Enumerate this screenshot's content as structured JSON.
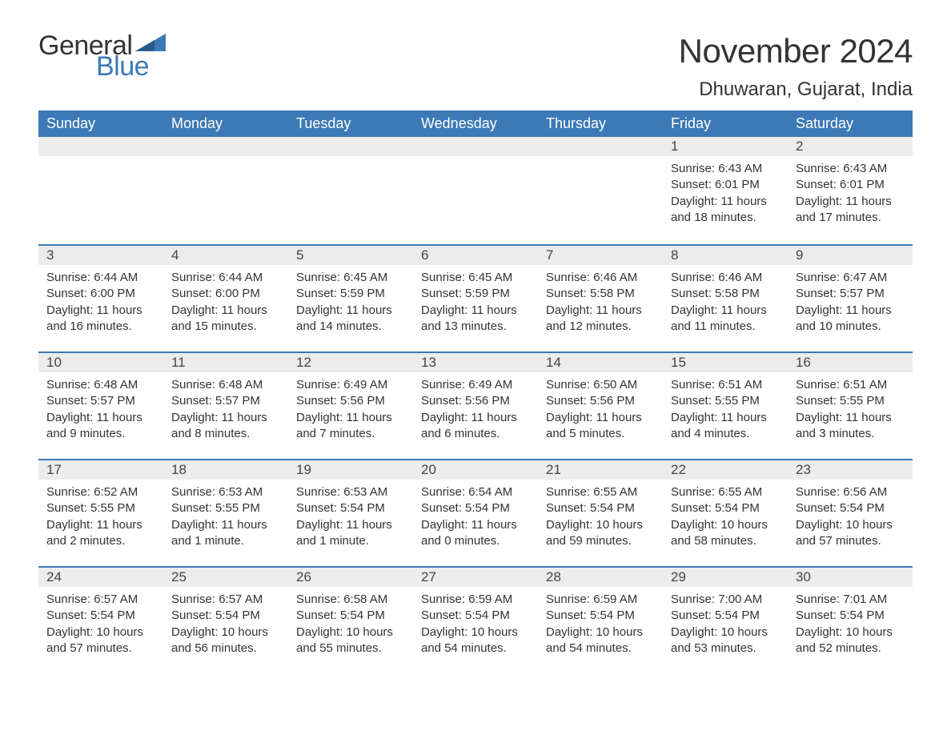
{
  "logo": {
    "text1": "General",
    "text2": "Blue",
    "accent_color": "#3c79b6"
  },
  "title": "November 2024",
  "location": "Dhuwaran, Gujarat, India",
  "header_bg": "#3c79b6",
  "header_fg": "#ffffff",
  "strip_bg": "#ececec",
  "border_color": "#3c79b6",
  "text_color": "#333333",
  "weekdays": [
    "Sunday",
    "Monday",
    "Tuesday",
    "Wednesday",
    "Thursday",
    "Friday",
    "Saturday"
  ],
  "weeks": [
    [
      {
        "n": "",
        "sr": "",
        "ss": "",
        "dl": ""
      },
      {
        "n": "",
        "sr": "",
        "ss": "",
        "dl": ""
      },
      {
        "n": "",
        "sr": "",
        "ss": "",
        "dl": ""
      },
      {
        "n": "",
        "sr": "",
        "ss": "",
        "dl": ""
      },
      {
        "n": "",
        "sr": "",
        "ss": "",
        "dl": ""
      },
      {
        "n": "1",
        "sr": "Sunrise: 6:43 AM",
        "ss": "Sunset: 6:01 PM",
        "dl": "Daylight: 11 hours and 18 minutes."
      },
      {
        "n": "2",
        "sr": "Sunrise: 6:43 AM",
        "ss": "Sunset: 6:01 PM",
        "dl": "Daylight: 11 hours and 17 minutes."
      }
    ],
    [
      {
        "n": "3",
        "sr": "Sunrise: 6:44 AM",
        "ss": "Sunset: 6:00 PM",
        "dl": "Daylight: 11 hours and 16 minutes."
      },
      {
        "n": "4",
        "sr": "Sunrise: 6:44 AM",
        "ss": "Sunset: 6:00 PM",
        "dl": "Daylight: 11 hours and 15 minutes."
      },
      {
        "n": "5",
        "sr": "Sunrise: 6:45 AM",
        "ss": "Sunset: 5:59 PM",
        "dl": "Daylight: 11 hours and 14 minutes."
      },
      {
        "n": "6",
        "sr": "Sunrise: 6:45 AM",
        "ss": "Sunset: 5:59 PM",
        "dl": "Daylight: 11 hours and 13 minutes."
      },
      {
        "n": "7",
        "sr": "Sunrise: 6:46 AM",
        "ss": "Sunset: 5:58 PM",
        "dl": "Daylight: 11 hours and 12 minutes."
      },
      {
        "n": "8",
        "sr": "Sunrise: 6:46 AM",
        "ss": "Sunset: 5:58 PM",
        "dl": "Daylight: 11 hours and 11 minutes."
      },
      {
        "n": "9",
        "sr": "Sunrise: 6:47 AM",
        "ss": "Sunset: 5:57 PM",
        "dl": "Daylight: 11 hours and 10 minutes."
      }
    ],
    [
      {
        "n": "10",
        "sr": "Sunrise: 6:48 AM",
        "ss": "Sunset: 5:57 PM",
        "dl": "Daylight: 11 hours and 9 minutes."
      },
      {
        "n": "11",
        "sr": "Sunrise: 6:48 AM",
        "ss": "Sunset: 5:57 PM",
        "dl": "Daylight: 11 hours and 8 minutes."
      },
      {
        "n": "12",
        "sr": "Sunrise: 6:49 AM",
        "ss": "Sunset: 5:56 PM",
        "dl": "Daylight: 11 hours and 7 minutes."
      },
      {
        "n": "13",
        "sr": "Sunrise: 6:49 AM",
        "ss": "Sunset: 5:56 PM",
        "dl": "Daylight: 11 hours and 6 minutes."
      },
      {
        "n": "14",
        "sr": "Sunrise: 6:50 AM",
        "ss": "Sunset: 5:56 PM",
        "dl": "Daylight: 11 hours and 5 minutes."
      },
      {
        "n": "15",
        "sr": "Sunrise: 6:51 AM",
        "ss": "Sunset: 5:55 PM",
        "dl": "Daylight: 11 hours and 4 minutes."
      },
      {
        "n": "16",
        "sr": "Sunrise: 6:51 AM",
        "ss": "Sunset: 5:55 PM",
        "dl": "Daylight: 11 hours and 3 minutes."
      }
    ],
    [
      {
        "n": "17",
        "sr": "Sunrise: 6:52 AM",
        "ss": "Sunset: 5:55 PM",
        "dl": "Daylight: 11 hours and 2 minutes."
      },
      {
        "n": "18",
        "sr": "Sunrise: 6:53 AM",
        "ss": "Sunset: 5:55 PM",
        "dl": "Daylight: 11 hours and 1 minute."
      },
      {
        "n": "19",
        "sr": "Sunrise: 6:53 AM",
        "ss": "Sunset: 5:54 PM",
        "dl": "Daylight: 11 hours and 1 minute."
      },
      {
        "n": "20",
        "sr": "Sunrise: 6:54 AM",
        "ss": "Sunset: 5:54 PM",
        "dl": "Daylight: 11 hours and 0 minutes."
      },
      {
        "n": "21",
        "sr": "Sunrise: 6:55 AM",
        "ss": "Sunset: 5:54 PM",
        "dl": "Daylight: 10 hours and 59 minutes."
      },
      {
        "n": "22",
        "sr": "Sunrise: 6:55 AM",
        "ss": "Sunset: 5:54 PM",
        "dl": "Daylight: 10 hours and 58 minutes."
      },
      {
        "n": "23",
        "sr": "Sunrise: 6:56 AM",
        "ss": "Sunset: 5:54 PM",
        "dl": "Daylight: 10 hours and 57 minutes."
      }
    ],
    [
      {
        "n": "24",
        "sr": "Sunrise: 6:57 AM",
        "ss": "Sunset: 5:54 PM",
        "dl": "Daylight: 10 hours and 57 minutes."
      },
      {
        "n": "25",
        "sr": "Sunrise: 6:57 AM",
        "ss": "Sunset: 5:54 PM",
        "dl": "Daylight: 10 hours and 56 minutes."
      },
      {
        "n": "26",
        "sr": "Sunrise: 6:58 AM",
        "ss": "Sunset: 5:54 PM",
        "dl": "Daylight: 10 hours and 55 minutes."
      },
      {
        "n": "27",
        "sr": "Sunrise: 6:59 AM",
        "ss": "Sunset: 5:54 PM",
        "dl": "Daylight: 10 hours and 54 minutes."
      },
      {
        "n": "28",
        "sr": "Sunrise: 6:59 AM",
        "ss": "Sunset: 5:54 PM",
        "dl": "Daylight: 10 hours and 54 minutes."
      },
      {
        "n": "29",
        "sr": "Sunrise: 7:00 AM",
        "ss": "Sunset: 5:54 PM",
        "dl": "Daylight: 10 hours and 53 minutes."
      },
      {
        "n": "30",
        "sr": "Sunrise: 7:01 AM",
        "ss": "Sunset: 5:54 PM",
        "dl": "Daylight: 10 hours and 52 minutes."
      }
    ]
  ]
}
